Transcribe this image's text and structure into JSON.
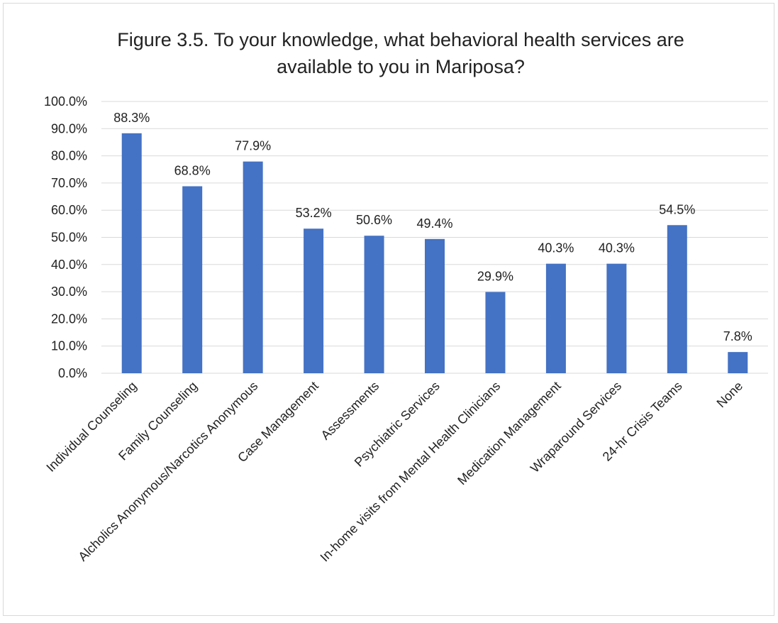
{
  "chart_data": {
    "type": "bar",
    "title_lines": [
      "Figure 3.5. To your knowledge, what behavioral health services are",
      "available to you in Mariposa?"
    ],
    "categories": [
      "Individual Counseling",
      "Family Counseling",
      "Alcholics Anonymous/Narcotics Anonymous",
      "Case Management",
      "Assessments",
      "Psychiatric Services",
      "In-home visits from Mental Health Clinicians",
      "Medication Management",
      "Wraparound Services",
      "24-hr Crisis Teams",
      "None"
    ],
    "values": [
      88.3,
      68.8,
      77.9,
      53.2,
      50.6,
      49.4,
      29.9,
      40.3,
      40.3,
      54.5,
      7.8
    ],
    "data_labels": [
      "88.3%",
      "68.8%",
      "77.9%",
      "53.2%",
      "50.6%",
      "49.4%",
      "29.9%",
      "40.3%",
      "40.3%",
      "54.5%",
      "7.8%"
    ],
    "y_ticks": [
      "0.0%",
      "10.0%",
      "20.0%",
      "30.0%",
      "40.0%",
      "50.0%",
      "60.0%",
      "70.0%",
      "80.0%",
      "90.0%",
      "100.0%"
    ],
    "ylim": [
      0,
      100
    ],
    "grid": true,
    "bar_color": "#4472c4",
    "grid_color": "#d9d9d9"
  }
}
